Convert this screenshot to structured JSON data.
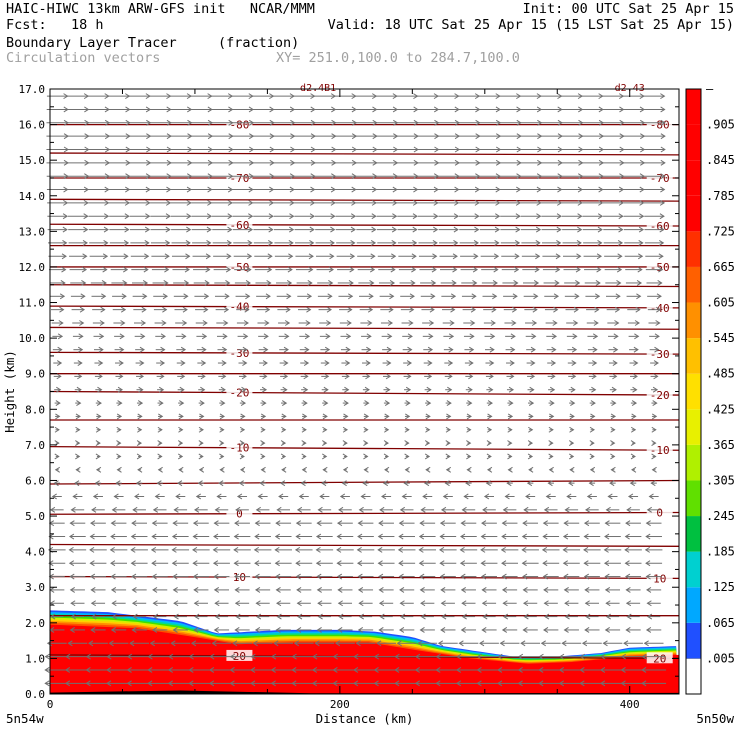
{
  "header": {
    "line1_left": "HAIC-HIWC 13km ARW-GFS init   NCAR/MMM",
    "line1_right": "Init: 00 UTC Sat 25 Apr 15",
    "line2_left": "Fcst:   18 h",
    "line2_right": "Valid: 18 UTC Sat 25 Apr 15 (15 LST Sat 25 Apr 15)",
    "field_name": "Boundary Layer Tracer",
    "field_units": "(fraction)",
    "vectors_name": "Circulation vectors",
    "xsec_endpoints": "XY= 251.0,100.0 to 284.7,100.0"
  },
  "colors": {
    "contour": "#800000",
    "vector": "#707070",
    "frame": "#000000",
    "colorbar": [
      "#2050ff",
      "#00a8ff",
      "#00d0d0",
      "#00c040",
      "#60e000",
      "#b0f000",
      "#e8f000",
      "#ffe000",
      "#ffc000",
      "#ff9000",
      "#ff6000",
      "#ff3000",
      "#ff0000",
      "#ff0000",
      "#ff0000",
      "#ff0000"
    ]
  },
  "chart_data": {
    "type": "cross-section",
    "title": "Boundary Layer Tracer",
    "xlabel": "Distance (km)",
    "ylabel": "Height (km)",
    "xlim": [
      0,
      434
    ],
    "ylim": [
      0,
      17
    ],
    "x_ticks": [
      0,
      200,
      400
    ],
    "x_endpoint_labels": [
      "5n54w",
      "5n50w"
    ],
    "y_ticks": [
      0.0,
      1.0,
      2.0,
      3.0,
      4.0,
      5.0,
      6.0,
      7.0,
      8.0,
      9.0,
      10.0,
      11.0,
      12.0,
      13.0,
      14.0,
      15.0,
      16.0,
      17.0
    ],
    "colorbar_labels": [
      ".005",
      ".065",
      ".125",
      ".185",
      ".245",
      ".305",
      ".365",
      ".425",
      ".485",
      ".545",
      ".605",
      ".665",
      ".725",
      ".785",
      ".845",
      ".905"
    ],
    "colorbar_top_label": "–",
    "tracer_top_km": [
      [
        0,
        2.35
      ],
      [
        40,
        2.3
      ],
      [
        90,
        2.05
      ],
      [
        115,
        1.7
      ],
      [
        160,
        1.8
      ],
      [
        200,
        1.8
      ],
      [
        225,
        1.75
      ],
      [
        250,
        1.6
      ],
      [
        270,
        1.35
      ],
      [
        295,
        1.2
      ],
      [
        320,
        1.05
      ],
      [
        350,
        1.05
      ],
      [
        380,
        1.15
      ],
      [
        400,
        1.3
      ],
      [
        434,
        1.35
      ]
    ],
    "tracer_core_top_km": [
      [
        0,
        1.95
      ],
      [
        60,
        1.85
      ],
      [
        100,
        1.6
      ],
      [
        130,
        1.4
      ],
      [
        170,
        1.45
      ],
      [
        220,
        1.45
      ],
      [
        250,
        1.25
      ],
      [
        290,
        1.0
      ],
      [
        330,
        0.85
      ],
      [
        360,
        0.9
      ],
      [
        400,
        1.05
      ],
      [
        434,
        1.1
      ]
    ],
    "contour_series": [
      {
        "label": "20",
        "heights_km": [
          [
            0,
            1.1
          ],
          [
            434,
            1.0
          ]
        ]
      },
      {
        "label": "",
        "heights_km": [
          [
            0,
            2.2
          ],
          [
            434,
            2.2
          ]
        ]
      },
      {
        "label": "10",
        "heights_km": [
          [
            0,
            3.3
          ],
          [
            434,
            3.25
          ]
        ]
      },
      {
        "label": "",
        "heights_km": [
          [
            0,
            4.2
          ],
          [
            434,
            4.15
          ]
        ]
      },
      {
        "label": "0",
        "heights_km": [
          [
            0,
            5.05
          ],
          [
            434,
            5.1
          ]
        ]
      },
      {
        "label": "",
        "heights_km": [
          [
            0,
            5.9
          ],
          [
            434,
            6.0
          ]
        ]
      },
      {
        "label": "-10",
        "heights_km": [
          [
            0,
            6.95
          ],
          [
            434,
            6.85
          ]
        ]
      },
      {
        "label": "",
        "heights_km": [
          [
            0,
            7.7
          ],
          [
            434,
            7.7
          ]
        ]
      },
      {
        "label": "-20",
        "heights_km": [
          [
            0,
            8.5
          ],
          [
            434,
            8.4
          ]
        ]
      },
      {
        "label": "",
        "heights_km": [
          [
            0,
            9.0
          ],
          [
            434,
            9.0
          ]
        ]
      },
      {
        "label": "-30",
        "heights_km": [
          [
            0,
            9.6
          ],
          [
            434,
            9.55
          ]
        ]
      },
      {
        "label": "",
        "heights_km": [
          [
            0,
            10.3
          ],
          [
            434,
            10.25
          ]
        ]
      },
      {
        "label": "-40",
        "heights_km": [
          [
            0,
            10.9
          ],
          [
            434,
            10.85
          ]
        ]
      },
      {
        "label": "",
        "heights_km": [
          [
            0,
            11.5
          ],
          [
            434,
            11.45
          ]
        ]
      },
      {
        "label": "-50",
        "heights_km": [
          [
            0,
            12.0
          ],
          [
            434,
            12.0
          ]
        ]
      },
      {
        "label": "",
        "heights_km": [
          [
            0,
            12.6
          ],
          [
            434,
            12.6
          ]
        ]
      },
      {
        "label": "-60",
        "heights_km": [
          [
            0,
            13.2
          ],
          [
            434,
            13.15
          ]
        ]
      },
      {
        "label": "",
        "heights_km": [
          [
            0,
            13.9
          ],
          [
            434,
            13.85
          ]
        ]
      },
      {
        "label": "-70",
        "heights_km": [
          [
            0,
            14.5
          ],
          [
            434,
            14.5
          ]
        ]
      },
      {
        "label": "",
        "heights_km": [
          [
            0,
            15.2
          ],
          [
            434,
            15.15
          ]
        ]
      },
      {
        "label": "-80",
        "heights_km": [
          [
            0,
            16.0
          ],
          [
            434,
            16.0
          ]
        ]
      }
    ],
    "contour_label_x_km": [
      [
        130,
        420
      ]
    ],
    "top_edge_labels": [
      "d2.4B1",
      "d2.43"
    ],
    "wind_profile": [
      {
        "z_km": 0.2,
        "u": -1.0
      },
      {
        "z_km": 1.0,
        "u": -1.0
      },
      {
        "z_km": 2.0,
        "u": -0.5
      },
      {
        "z_km": 3.0,
        "u": -0.6
      },
      {
        "z_km": 4.0,
        "u": -0.7
      },
      {
        "z_km": 5.0,
        "u": -0.6
      },
      {
        "z_km": 6.0,
        "u": -0.2
      },
      {
        "z_km": 7.0,
        "u": 0.1
      },
      {
        "z_km": 8.0,
        "u": 0.2
      },
      {
        "z_km": 9.0,
        "u": 0.3
      },
      {
        "z_km": 10.0,
        "u": 0.4
      },
      {
        "z_km": 11.0,
        "u": 0.55
      },
      {
        "z_km": 12.0,
        "u": 0.7
      },
      {
        "z_km": 13.0,
        "u": 0.8
      },
      {
        "z_km": 14.0,
        "u": 0.85
      },
      {
        "z_km": 15.0,
        "u": 0.9
      },
      {
        "z_km": 16.0,
        "u": 0.9
      },
      {
        "z_km": 17.0,
        "u": 0.85
      }
    ]
  }
}
